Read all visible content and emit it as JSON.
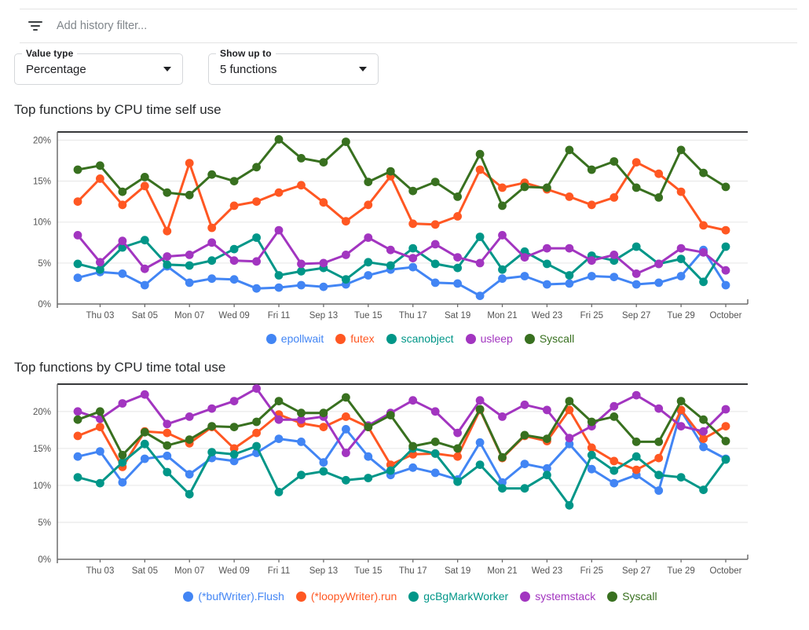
{
  "filter_bar": {
    "placeholder": "Add history filter..."
  },
  "controls": {
    "value_type": {
      "label": "Value type",
      "value": "Percentage"
    },
    "show_up_to": {
      "label": "Show up to",
      "value": "5 functions"
    }
  },
  "chart_data": [
    {
      "type": "line",
      "title": "Top functions by CPU time self use",
      "x_tick_labels": [
        "Thu 03",
        "Sat 05",
        "Mon 07",
        "Wed 09",
        "Fri 11",
        "Sep 13",
        "Tue 15",
        "Thu 17",
        "Sat 19",
        "Mon 21",
        "Wed 23",
        "Fri 25",
        "Sep 27",
        "Tue 29",
        "October"
      ],
      "y_tick_labels": [
        "0%",
        "5%",
        "10%",
        "15%",
        "20%"
      ],
      "ylim": [
        0,
        21
      ],
      "grid": true,
      "legend_position": "bottom",
      "series": [
        {
          "name": "epollwait",
          "color": "#4285f4",
          "values": [
            3.2,
            3.9,
            3.7,
            2.3,
            4.6,
            2.6,
            3.1,
            3.0,
            1.9,
            2.0,
            2.3,
            2.1,
            2.4,
            3.5,
            4.2,
            4.5,
            2.6,
            2.5,
            1.0,
            3.1,
            3.4,
            2.4,
            2.5,
            3.4,
            3.3,
            2.4,
            2.6,
            3.4,
            6.6,
            2.3
          ]
        },
        {
          "name": "futex",
          "color": "#ff5722",
          "values": [
            12.5,
            15.3,
            12.1,
            14.4,
            8.9,
            17.2,
            9.3,
            12.0,
            12.5,
            13.6,
            14.5,
            12.4,
            10.1,
            12.1,
            15.6,
            9.8,
            9.7,
            10.7,
            16.4,
            14.2,
            14.8,
            14.0,
            13.1,
            12.1,
            13.0,
            17.3,
            15.9,
            13.7,
            9.6,
            9.0
          ]
        },
        {
          "name": "scanobject",
          "color": "#009688",
          "values": [
            4.9,
            4.2,
            6.9,
            7.8,
            4.8,
            4.7,
            5.3,
            6.7,
            8.1,
            3.5,
            4.0,
            4.4,
            3.0,
            5.1,
            4.7,
            6.8,
            4.9,
            4.4,
            8.2,
            4.2,
            6.4,
            4.9,
            3.5,
            5.9,
            5.3,
            7.0,
            4.9,
            5.5,
            2.7,
            7.0
          ]
        },
        {
          "name": "usleep",
          "color": "#a235c0",
          "values": [
            8.4,
            5.1,
            7.7,
            4.3,
            5.8,
            6.0,
            7.5,
            5.3,
            5.2,
            9.0,
            4.9,
            5.0,
            6.0,
            8.1,
            6.6,
            5.6,
            7.3,
            5.7,
            5.0,
            8.4,
            5.7,
            6.8,
            6.8,
            5.3,
            6.0,
            3.7,
            4.9,
            6.8,
            6.3,
            4.1
          ]
        },
        {
          "name": "Syscall",
          "color": "#38701f",
          "values": [
            16.4,
            16.9,
            13.7,
            15.5,
            13.6,
            13.3,
            15.8,
            15.0,
            16.7,
            20.1,
            17.8,
            17.3,
            19.8,
            14.9,
            16.2,
            13.8,
            14.9,
            13.1,
            18.3,
            12.0,
            14.3,
            14.2,
            18.8,
            16.4,
            17.4,
            14.2,
            13.0,
            18.8,
            16.0,
            14.3
          ]
        }
      ]
    },
    {
      "type": "line",
      "title": "Top functions by CPU time total use",
      "x_tick_labels": [
        "Thu 03",
        "Sat 05",
        "Mon 07",
        "Wed 09",
        "Fri 11",
        "Sep 13",
        "Tue 15",
        "Thu 17",
        "Sat 19",
        "Mon 21",
        "Wed 23",
        "Fri 25",
        "Sep 27",
        "Tue 29",
        "October"
      ],
      "y_tick_labels": [
        "0%",
        "5%",
        "10%",
        "15%",
        "20%"
      ],
      "ylim": [
        0,
        23.7
      ],
      "grid": true,
      "legend_position": "bottom",
      "series": [
        {
          "name": "(*bufWriter).Flush",
          "color": "#4285f4",
          "values": [
            13.9,
            14.6,
            10.4,
            13.6,
            14.0,
            11.5,
            13.7,
            13.3,
            14.4,
            16.3,
            15.9,
            13.1,
            17.6,
            13.9,
            11.4,
            12.4,
            11.7,
            10.8,
            15.8,
            10.4,
            12.9,
            12.3,
            15.6,
            12.2,
            10.3,
            11.4,
            9.3,
            20.1,
            15.2,
            13.6
          ]
        },
        {
          "name": "(*loopyWriter).run",
          "color": "#ff5722",
          "values": [
            16.7,
            17.9,
            12.5,
            17.3,
            17.1,
            15.7,
            17.9,
            15.0,
            17.1,
            19.6,
            18.4,
            17.9,
            19.3,
            17.9,
            12.8,
            14.2,
            14.3,
            13.9,
            20.2,
            13.7,
            16.7,
            16.0,
            20.2,
            15.1,
            13.3,
            12.1,
            13.7,
            20.2,
            16.3,
            18.0
          ]
        },
        {
          "name": "gcBgMarkWorker",
          "color": "#009688",
          "values": [
            11.1,
            10.3,
            13.1,
            15.6,
            11.8,
            8.8,
            14.5,
            14.2,
            15.3,
            9.1,
            11.4,
            11.9,
            10.7,
            11.0,
            12.0,
            15.0,
            14.3,
            10.5,
            12.8,
            9.6,
            9.6,
            11.4,
            7.3,
            14.1,
            12.0,
            13.9,
            11.4,
            11.1,
            9.4,
            13.5
          ]
        },
        {
          "name": "systemstack",
          "color": "#a235c0",
          "values": [
            20.0,
            19.0,
            21.1,
            22.3,
            18.3,
            19.3,
            20.4,
            21.4,
            23.1,
            18.9,
            18.9,
            19.3,
            14.4,
            18.1,
            19.8,
            21.5,
            20.0,
            17.1,
            21.5,
            19.3,
            20.9,
            20.2,
            16.4,
            18.0,
            20.7,
            22.2,
            20.4,
            18.0,
            17.3,
            20.3
          ]
        },
        {
          "name": "Syscall",
          "color": "#38701f",
          "values": [
            18.9,
            20.0,
            14.1,
            17.2,
            15.4,
            16.2,
            18.0,
            17.9,
            18.6,
            21.4,
            19.8,
            19.8,
            21.9,
            17.9,
            19.5,
            15.3,
            15.9,
            15.0,
            20.3,
            13.8,
            16.8,
            16.3,
            21.4,
            18.6,
            19.3,
            15.9,
            15.9,
            21.4,
            18.9,
            16.0
          ]
        }
      ]
    }
  ]
}
